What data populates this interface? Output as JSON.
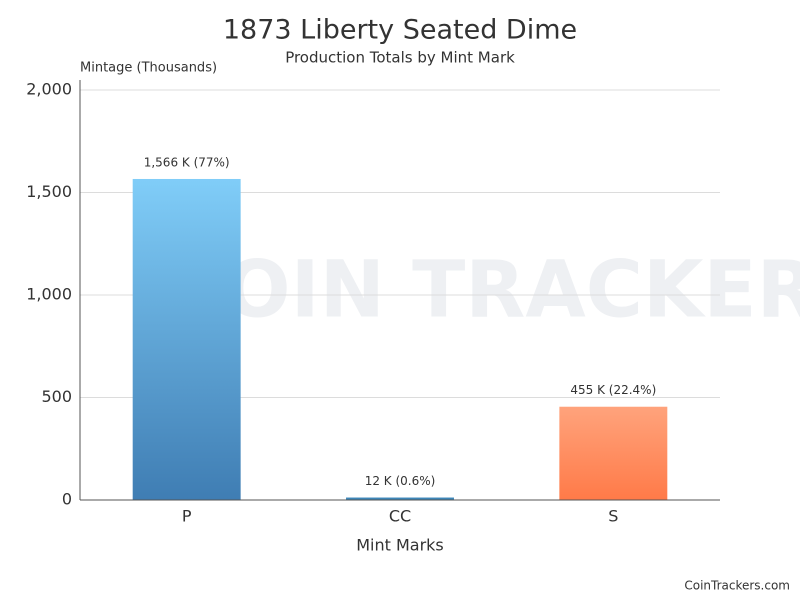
{
  "chart_data": {
    "type": "bar",
    "title": "1873 Liberty Seated Dime",
    "subtitle": "Production Totals by Mint Mark",
    "y_label": "Mintage (Thousands)",
    "x_label": "Mint Marks",
    "watermark": "COIN TRACKERS",
    "credit": "CoinTrackers.com",
    "categories": [
      "P",
      "CC",
      "S"
    ],
    "values": [
      1566,
      12,
      455
    ],
    "value_labels": [
      "1,566 K (77%)",
      "12 K (0.6%)",
      "455 K (22.4%)"
    ],
    "gradients": [
      [
        "#80cdf8",
        "#3f7db3"
      ],
      [
        "#3d86b8",
        "#3d86b8"
      ],
      [
        "#ffa37c",
        "#ff7a48"
      ]
    ],
    "ylim": [
      0,
      2000
    ],
    "yticks": [
      0,
      500,
      {
        "value": 1000,
        "label": "1,000"
      },
      {
        "value": 1500,
        "label": "1,500"
      },
      {
        "value": 2000,
        "label": "2,000"
      }
    ],
    "grid": true
  }
}
